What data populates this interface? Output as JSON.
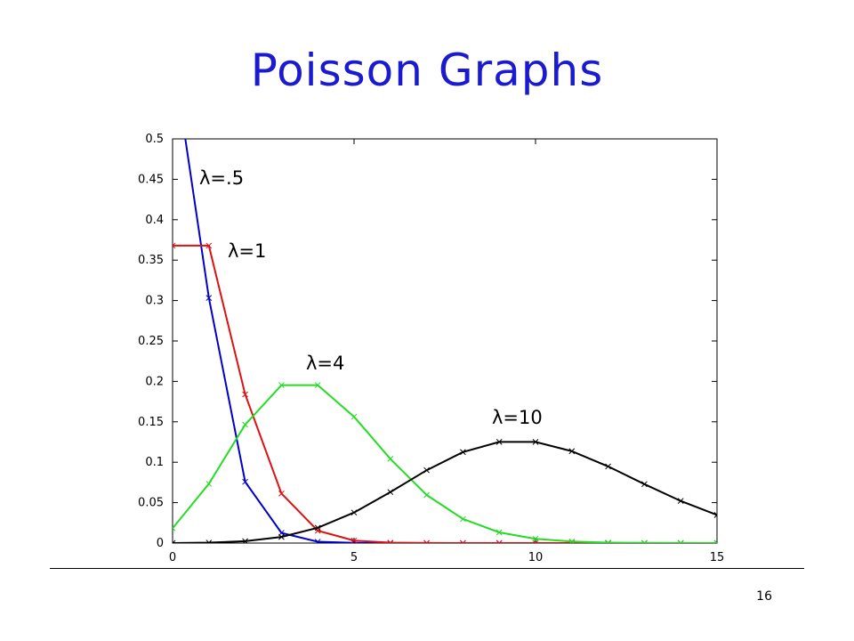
{
  "slide": {
    "title": "Poisson Graphs",
    "page_number": "16"
  },
  "chart_data": {
    "type": "line",
    "title": "",
    "xlabel": "",
    "ylabel": "",
    "xlim": [
      0,
      15
    ],
    "ylim": [
      0,
      0.5
    ],
    "x_ticks": [
      "0",
      "5",
      "10",
      "15"
    ],
    "y_ticks": [
      "0",
      "0.05",
      "0.1",
      "0.15",
      "0.2",
      "0.25",
      "0.3",
      "0.35",
      "0.4",
      "0.45",
      "0.5"
    ],
    "grid": false,
    "x": [
      0,
      1,
      2,
      3,
      4,
      5,
      6,
      7,
      8,
      9,
      10,
      11,
      12,
      13,
      14,
      15
    ],
    "series": [
      {
        "label": "λ=.5",
        "color": "#0000cc",
        "marker": "x",
        "values": [
          0.6065,
          0.3033,
          0.0758,
          0.0126,
          0.0016,
          0.0002,
          0,
          0,
          0,
          0,
          0,
          0,
          0,
          0,
          0,
          0
        ]
      },
      {
        "label": "λ=1",
        "color": "#dd1111",
        "marker": "x",
        "values": [
          0.3679,
          0.3679,
          0.1839,
          0.0613,
          0.0153,
          0.0031,
          0.0005,
          0.0001,
          0,
          0,
          0,
          0,
          0,
          0,
          0,
          0
        ]
      },
      {
        "label": "λ=4",
        "color": "#22dd22",
        "marker": "x",
        "values": [
          0.0183,
          0.0733,
          0.1465,
          0.1954,
          0.1954,
          0.1563,
          0.1042,
          0.0595,
          0.0298,
          0.0132,
          0.0053,
          0.0019,
          0.0006,
          0.0002,
          0.0001,
          0
        ]
      },
      {
        "label": "λ=10",
        "color": "#000000",
        "marker": "x",
        "values": [
          0,
          0.0005,
          0.0023,
          0.0076,
          0.0189,
          0.0378,
          0.0631,
          0.0901,
          0.1126,
          0.1251,
          0.1251,
          0.1137,
          0.0948,
          0.0729,
          0.0521,
          0.0347
        ]
      }
    ]
  }
}
